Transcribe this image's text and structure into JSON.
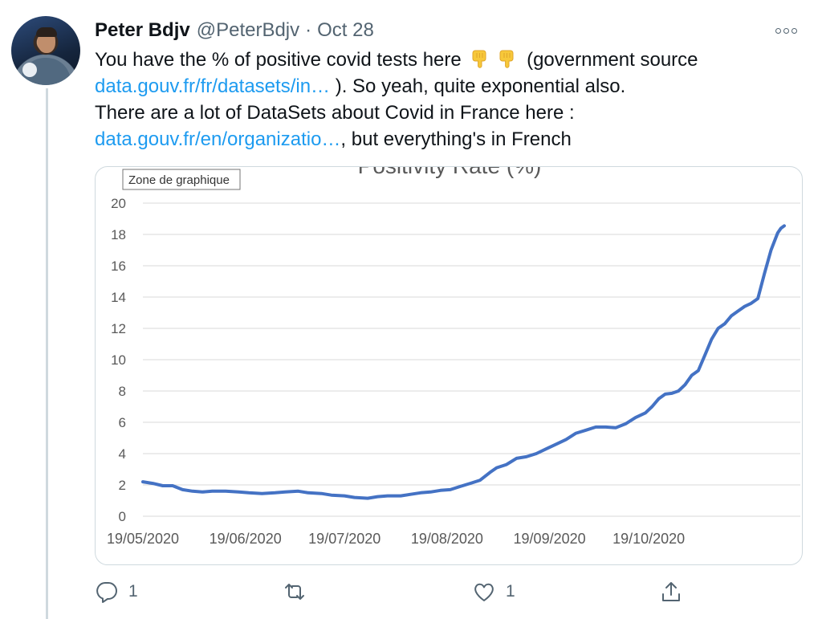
{
  "tweet": {
    "author": {
      "name": "Peter Bdjv",
      "handle": "@PeterBdjv"
    },
    "separator": "·",
    "date": "Oct 28",
    "text": {
      "l1_before": "You have the % of positive covid tests here",
      "l1_after": "(government source",
      "link1": "data.gouv.fr/fr/datasets/in…",
      "l2_after": " ). So yeah, quite exponential also.",
      "l3": "There are a lot of DataSets about Covid in France here :",
      "link2": "data.gouv.fr/en/organizatio…",
      "l4_after": ", but everything's in French"
    },
    "emoji": [
      "pointing-down-emoji",
      "pointing-down-emoji"
    ],
    "actions": {
      "reply_count": "1",
      "retweet_count": "",
      "like_count": "1"
    }
  },
  "chart_data": {
    "type": "line",
    "title": "Positivity Rate (%)",
    "tooltip": "Zone de graphique",
    "xlabel": "",
    "ylabel": "",
    "ylim": [
      0,
      20
    ],
    "yticks": [
      0,
      2,
      4,
      6,
      8,
      10,
      12,
      14,
      16,
      18,
      20
    ],
    "xticks": [
      "19/05/2020",
      "19/06/2020",
      "19/07/2020",
      "19/08/2020",
      "19/09/2020",
      "19/10/2020"
    ],
    "grid": true,
    "legend": "none",
    "series": [
      {
        "color": "#4472c4",
        "points": [
          [
            "2020-05-19",
            2.2
          ],
          [
            "2020-05-22",
            2.1
          ],
          [
            "2020-05-25",
            1.95
          ],
          [
            "2020-05-28",
            1.95
          ],
          [
            "2020-05-31",
            1.7
          ],
          [
            "2020-06-03",
            1.6
          ],
          [
            "2020-06-06",
            1.55
          ],
          [
            "2020-06-09",
            1.6
          ],
          [
            "2020-06-13",
            1.6
          ],
          [
            "2020-06-17",
            1.55
          ],
          [
            "2020-06-20",
            1.5
          ],
          [
            "2020-06-24",
            1.45
          ],
          [
            "2020-06-28",
            1.5
          ],
          [
            "2020-07-01",
            1.55
          ],
          [
            "2020-07-05",
            1.6
          ],
          [
            "2020-07-08",
            1.5
          ],
          [
            "2020-07-12",
            1.45
          ],
          [
            "2020-07-15",
            1.35
          ],
          [
            "2020-07-19",
            1.3
          ],
          [
            "2020-07-22",
            1.2
          ],
          [
            "2020-07-26",
            1.15
          ],
          [
            "2020-07-29",
            1.25
          ],
          [
            "2020-08-01",
            1.3
          ],
          [
            "2020-08-05",
            1.3
          ],
          [
            "2020-08-08",
            1.4
          ],
          [
            "2020-08-11",
            1.5
          ],
          [
            "2020-08-14",
            1.55
          ],
          [
            "2020-08-17",
            1.65
          ],
          [
            "2020-08-20",
            1.7
          ],
          [
            "2020-08-23",
            1.9
          ],
          [
            "2020-08-26",
            2.1
          ],
          [
            "2020-08-29",
            2.3
          ],
          [
            "2020-09-01",
            2.8
          ],
          [
            "2020-09-03",
            3.1
          ],
          [
            "2020-09-06",
            3.3
          ],
          [
            "2020-09-09",
            3.7
          ],
          [
            "2020-09-12",
            3.8
          ],
          [
            "2020-09-15",
            4.0
          ],
          [
            "2020-09-18",
            4.3
          ],
          [
            "2020-09-21",
            4.6
          ],
          [
            "2020-09-24",
            4.9
          ],
          [
            "2020-09-27",
            5.3
          ],
          [
            "2020-09-30",
            5.5
          ],
          [
            "2020-10-03",
            5.7
          ],
          [
            "2020-10-06",
            5.7
          ],
          [
            "2020-10-09",
            5.65
          ],
          [
            "2020-10-12",
            5.9
          ],
          [
            "2020-10-15",
            6.3
          ],
          [
            "2020-10-18",
            6.6
          ],
          [
            "2020-10-20",
            7.0
          ],
          [
            "2020-10-22",
            7.5
          ],
          [
            "2020-10-24",
            7.8
          ],
          [
            "2020-10-26",
            7.85
          ],
          [
            "2020-10-28",
            8.0
          ],
          [
            "2020-10-30",
            8.4
          ],
          [
            "2020-11-01",
            9.0
          ],
          [
            "2020-11-03",
            9.3
          ],
          [
            "2020-11-05",
            10.3
          ],
          [
            "2020-11-07",
            11.3
          ],
          [
            "2020-11-09",
            12.0
          ],
          [
            "2020-11-11",
            12.3
          ],
          [
            "2020-11-13",
            12.8
          ],
          [
            "2020-11-15",
            13.1
          ],
          [
            "2020-11-17",
            13.4
          ],
          [
            "2020-11-19",
            13.6
          ],
          [
            "2020-11-21",
            13.9
          ],
          [
            "2020-11-23",
            15.5
          ],
          [
            "2020-11-25",
            17.0
          ],
          [
            "2020-11-27",
            18.1
          ],
          [
            "2020-11-28",
            18.4
          ],
          [
            "2020-11-29",
            18.55
          ]
        ]
      }
    ]
  }
}
